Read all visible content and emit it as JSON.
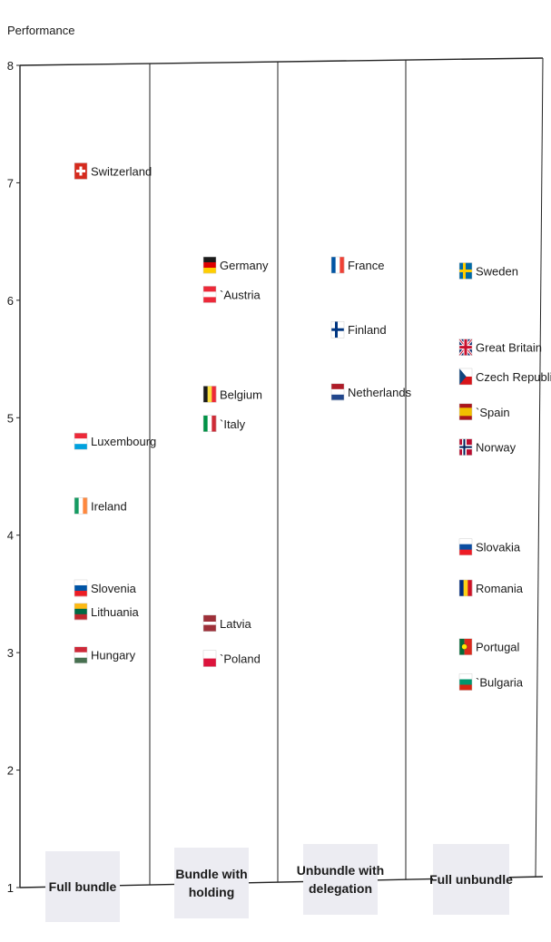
{
  "chart_data": {
    "type": "scatter",
    "title": "",
    "ylabel": "Performance",
    "ylim": [
      1,
      8
    ],
    "yticks": [
      1,
      2,
      3,
      4,
      5,
      6,
      7,
      8
    ],
    "grid": false,
    "legend": "none",
    "categories": [
      "Full bundle",
      "Bundle with holding",
      "Unbundle with delegation",
      "Full unbundle"
    ],
    "category_display": [
      [
        "Full bundle"
      ],
      [
        "Bundle with",
        "holding"
      ],
      [
        "Unbundle with",
        "delegation"
      ],
      [
        "Full unbundle"
      ]
    ],
    "series": [
      {
        "category": "Full bundle",
        "points": [
          {
            "label": "Switzerland",
            "y": 7.1,
            "flag": "switzerland"
          },
          {
            "label": "Luxembourg",
            "y": 4.8,
            "flag": "luxembourg"
          },
          {
            "label": "Ireland",
            "y": 4.25,
            "flag": "ireland"
          },
          {
            "label": "Slovenia",
            "y": 3.55,
            "flag": "slovenia"
          },
          {
            "label": "Lithuania",
            "y": 3.35,
            "flag": "lithuania"
          },
          {
            "label": "Hungary",
            "y": 2.98,
            "flag": "hungary"
          }
        ]
      },
      {
        "category": "Bundle with holding",
        "points": [
          {
            "label": "Germany",
            "y": 6.3,
            "flag": "germany"
          },
          {
            "label": "`Austria",
            "y": 6.05,
            "flag": "austria"
          },
          {
            "label": "Belgium",
            "y": 5.2,
            "flag": "belgium"
          },
          {
            "label": "`Italy",
            "y": 4.95,
            "flag": "italy"
          },
          {
            "label": "Latvia",
            "y": 3.25,
            "flag": "latvia"
          },
          {
            "label": "`Poland",
            "y": 2.95,
            "flag": "poland"
          }
        ]
      },
      {
        "category": "Unbundle with delegation",
        "points": [
          {
            "label": "France",
            "y": 6.3,
            "flag": "france"
          },
          {
            "label": "Finland",
            "y": 5.75,
            "flag": "finland"
          },
          {
            "label": "Netherlands",
            "y": 5.22,
            "flag": "netherlands"
          }
        ]
      },
      {
        "category": "Full unbundle",
        "points": [
          {
            "label": "Sweden",
            "y": 6.25,
            "flag": "sweden"
          },
          {
            "label": "Great Britain",
            "y": 5.6,
            "flag": "great-britain"
          },
          {
            "label": "Czech Republic",
            "y": 5.35,
            "flag": "czech-republic"
          },
          {
            "label": "`Spain",
            "y": 5.05,
            "flag": "spain"
          },
          {
            "label": "Norway",
            "y": 4.75,
            "flag": "norway"
          },
          {
            "label": "Slovakia",
            "y": 3.9,
            "flag": "slovakia"
          },
          {
            "label": "Romania",
            "y": 3.55,
            "flag": "romania"
          },
          {
            "label": "Portugal",
            "y": 3.05,
            "flag": "portugal"
          },
          {
            "label": "`Bulgaria",
            "y": 2.75,
            "flag": "bulgaria"
          }
        ]
      }
    ]
  },
  "flag_colors": {
    "switzerland": {
      "kind": "switz",
      "c": [
        "#d52b1e",
        "#ffffff"
      ]
    },
    "luxembourg": {
      "kind": "h",
      "c": [
        "#ed2939",
        "#ffffff",
        "#00a1de"
      ]
    },
    "ireland": {
      "kind": "v",
      "c": [
        "#169b62",
        "#ffffff",
        "#ff883e"
      ]
    },
    "slovenia": {
      "kind": "h",
      "c": [
        "#ffffff",
        "#0054a5",
        "#ed1c24"
      ]
    },
    "lithuania": {
      "kind": "h",
      "c": [
        "#fdb913",
        "#006a44",
        "#c1272d"
      ]
    },
    "hungary": {
      "kind": "h",
      "c": [
        "#ce2939",
        "#ffffff",
        "#477050"
      ]
    },
    "germany": {
      "kind": "h",
      "c": [
        "#1a1a1a",
        "#dd0000",
        "#ffce00"
      ]
    },
    "austria": {
      "kind": "h",
      "c": [
        "#ed2939",
        "#ffffff",
        "#ed2939"
      ]
    },
    "belgium": {
      "kind": "v",
      "c": [
        "#1a1a1a",
        "#fae042",
        "#ed2939"
      ]
    },
    "italy": {
      "kind": "v",
      "c": [
        "#009246",
        "#ffffff",
        "#ce2b37"
      ]
    },
    "latvia": {
      "kind": "h3",
      "c": [
        "#9e3039",
        "#ffffff",
        "#9e3039"
      ]
    },
    "poland": {
      "kind": "h2",
      "c": [
        "#ffffff",
        "#dc143c"
      ]
    },
    "france": {
      "kind": "v",
      "c": [
        "#0055a4",
        "#ffffff",
        "#ef4135"
      ]
    },
    "finland": {
      "kind": "nordic",
      "c": [
        "#ffffff",
        "#003580"
      ]
    },
    "netherlands": {
      "kind": "h",
      "c": [
        "#ae1c28",
        "#ffffff",
        "#21468b"
      ]
    },
    "sweden": {
      "kind": "nordic",
      "c": [
        "#006aa7",
        "#fecc00"
      ]
    },
    "great-britain": {
      "kind": "uk",
      "c": [
        "#012169",
        "#ffffff",
        "#c8102e"
      ]
    },
    "czech-republic": {
      "kind": "czech",
      "c": [
        "#ffffff",
        "#d7141a",
        "#11457e"
      ]
    },
    "spain": {
      "kind": "spain",
      "c": [
        "#aa151b",
        "#f1bf00"
      ]
    },
    "norway": {
      "kind": "nordic2",
      "c": [
        "#ba0c2f",
        "#ffffff",
        "#00205b"
      ]
    },
    "slovakia": {
      "kind": "h",
      "c": [
        "#ffffff",
        "#0b4ea2",
        "#ee1c25"
      ]
    },
    "romania": {
      "kind": "v",
      "c": [
        "#002b7f",
        "#fcd116",
        "#ce1126"
      ]
    },
    "portugal": {
      "kind": "portugal",
      "c": [
        "#046a38",
        "#da291c"
      ]
    },
    "bulgaria": {
      "kind": "h",
      "c": [
        "#ffffff",
        "#00966e",
        "#d62612"
      ]
    }
  }
}
